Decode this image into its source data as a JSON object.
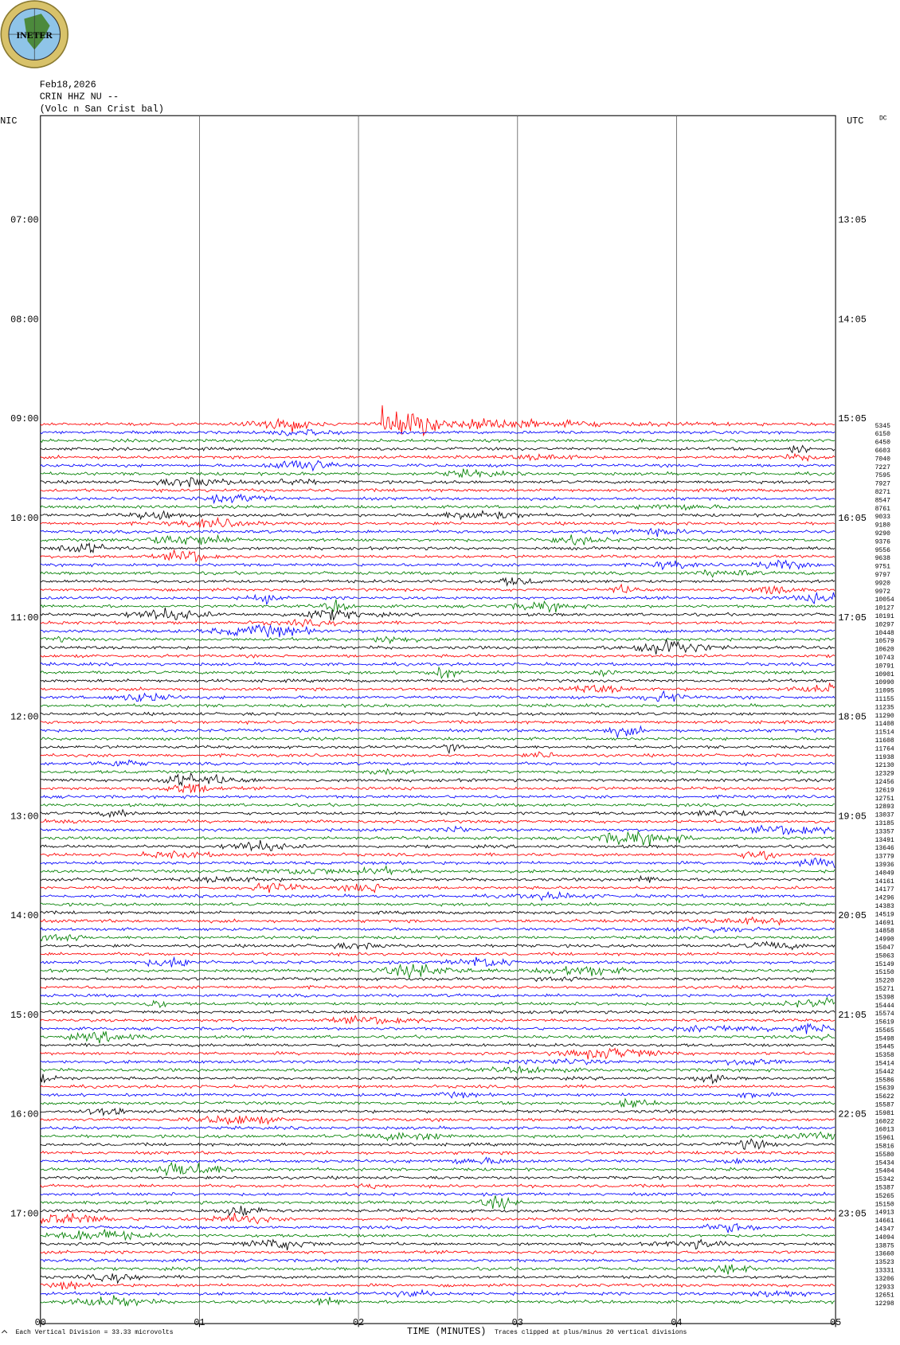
{
  "logo": "INETER",
  "chart_data": {
    "type": "helicorder",
    "header": [
      "Feb18,2026",
      "CRIN HHZ NU --",
      "(Volc n San Crist bal)"
    ],
    "left_axis_title": "NIC",
    "right_axis_title": "UTC",
    "dc_title": "DC",
    "xlabel": "TIME (MINUTES)",
    "xlim": [
      0,
      5
    ],
    "xticks": [
      {
        "value": 0,
        "label": "00"
      },
      {
        "value": 1,
        "label": "01"
      },
      {
        "value": 2,
        "label": "02"
      },
      {
        "value": 3,
        "label": "03"
      },
      {
        "value": 4,
        "label": "04"
      },
      {
        "value": 5,
        "label": "05"
      }
    ],
    "grid": true,
    "left_hours": [
      "07:00",
      "08:00",
      "09:00",
      "10:00",
      "11:00",
      "12:00",
      "13:00",
      "14:00",
      "15:00",
      "16:00",
      "17:00"
    ],
    "right_hours": [
      "13:05",
      "14:05",
      "15:05",
      "16:05",
      "17:05",
      "18:05",
      "19:05",
      "20:05",
      "21:05",
      "22:05",
      "23:05"
    ],
    "trace_colors": [
      "#ff0000",
      "#0000ff",
      "#007f00",
      "#000000"
    ],
    "dc_values": [
      5345,
      6150,
      6450,
      6603,
      7040,
      7227,
      7595,
      7927,
      8271,
      8547,
      8761,
      9033,
      9180,
      9290,
      9376,
      9556,
      9638,
      9751,
      9797,
      9920,
      9972,
      10054,
      10127,
      10191,
      10297,
      10448,
      10579,
      10620,
      10743,
      10791,
      10901,
      10990,
      11095,
      11155,
      11235,
      11290,
      11408,
      11514,
      11608,
      11764,
      11938,
      12130,
      12329,
      12456,
      12619,
      12751,
      12893,
      13037,
      13185,
      13357,
      13491,
      13646,
      13779,
      13936,
      14049,
      14161,
      14177,
      14296,
      14383,
      14519,
      14691,
      14858,
      14990,
      15047,
      15063,
      15149,
      15150,
      15220,
      15271,
      15398,
      15444,
      15574,
      15619,
      15565,
      15498,
      15445,
      15358,
      15414,
      15442,
      15586,
      15639,
      15622,
      15587,
      15981,
      16022,
      16013,
      15961,
      15816,
      15580,
      15434,
      15404,
      15342,
      15387,
      15265,
      15150,
      14913,
      14661,
      14347,
      14094,
      13875,
      13660,
      13523,
      13331,
      13206,
      12933,
      12651,
      12298
    ],
    "note_scale": "Each Vertical Division =   33.33 microvolts",
    "note_clip": "Traces clipped at plus/minus 20 vertical divisions"
  }
}
